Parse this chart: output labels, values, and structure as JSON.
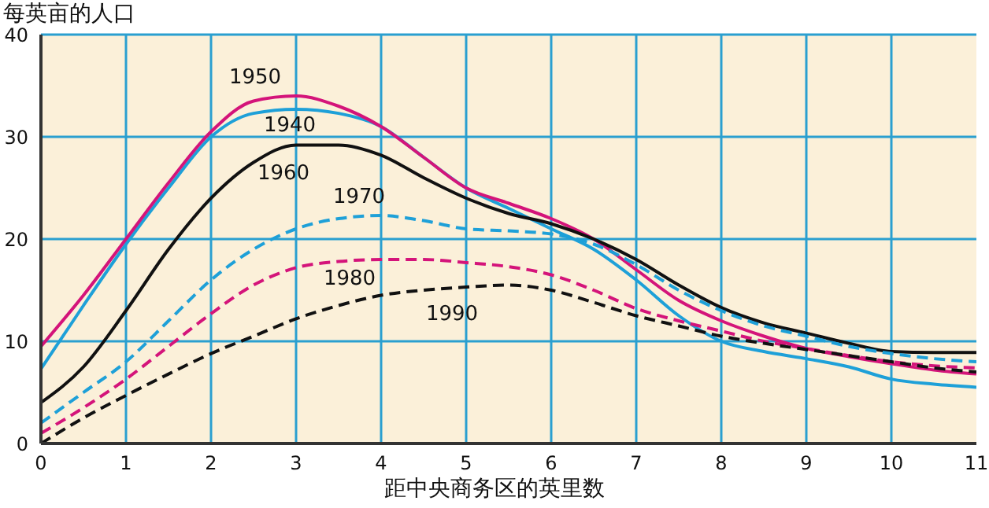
{
  "chart_data": {
    "type": "line",
    "ylabel": "每英亩的人口",
    "xlabel": "距中央商务区的英里数",
    "x": [
      0,
      0.5,
      1,
      1.5,
      2,
      2.5,
      3,
      3.5,
      4,
      4.5,
      5,
      5.5,
      6,
      6.5,
      7,
      7.5,
      8,
      8.5,
      9,
      9.5,
      10,
      10.5,
      11
    ],
    "series": [
      {
        "name": "1940",
        "color": "#1ea0d8",
        "line_style": "solid",
        "values": [
          7.3,
          13.5,
          19.5,
          25,
          30,
          32.3,
          32.7,
          32.3,
          31,
          28,
          25,
          23,
          21,
          19,
          16,
          12.5,
          10,
          9,
          8.3,
          7.5,
          6.3,
          5.8,
          5.5
        ]
      },
      {
        "name": "1950",
        "color": "#d4147a",
        "line_style": "solid",
        "values": [
          9.5,
          14.5,
          20,
          25.5,
          30.5,
          33.5,
          34,
          33,
          31,
          28,
          25,
          23.5,
          22,
          20,
          17,
          14,
          12,
          10.5,
          9.3,
          8.5,
          7.8,
          7.2,
          6.8
        ]
      },
      {
        "name": "1960",
        "color": "#111111",
        "line_style": "solid",
        "values": [
          4,
          7.5,
          13,
          19,
          24,
          27.5,
          29.2,
          29.2,
          28.2,
          26,
          24,
          22.5,
          21.5,
          20,
          18,
          15.5,
          13.3,
          11.8,
          10.8,
          9.8,
          9,
          8.9,
          8.9
        ]
      },
      {
        "name": "1970",
        "color": "#1ea0d8",
        "line_style": "dashed",
        "values": [
          2,
          5,
          8,
          12,
          16,
          19,
          21,
          22,
          22.3,
          21.8,
          21,
          20.8,
          20.5,
          19.5,
          17.5,
          15,
          13,
          11.5,
          10.5,
          9.5,
          8.8,
          8.3,
          8
        ]
      },
      {
        "name": "1980",
        "color": "#d4147a",
        "line_style": "dashed",
        "values": [
          1,
          3.5,
          6.3,
          9.5,
          12.7,
          15.5,
          17.2,
          17.8,
          18,
          18,
          17.7,
          17.3,
          16.5,
          15,
          13.2,
          12,
          11,
          10,
          9.3,
          8.6,
          8,
          7.6,
          7.4
        ]
      },
      {
        "name": "1990",
        "color": "#111111",
        "line_style": "dashed",
        "values": [
          0,
          2.5,
          4.7,
          6.8,
          8.8,
          10.5,
          12.2,
          13.5,
          14.5,
          15,
          15.3,
          15.5,
          15,
          13.8,
          12.5,
          11.5,
          10.5,
          9.8,
          9.2,
          8.6,
          8,
          7.4,
          7
        ]
      }
    ],
    "xlim": [
      0,
      11
    ],
    "xticks": [
      0,
      1,
      2,
      3,
      4,
      5,
      6,
      7,
      8,
      9,
      10,
      11
    ],
    "ylim": [
      0,
      40
    ],
    "yticks": [
      0,
      10,
      20,
      30,
      40
    ],
    "grid": true
  }
}
